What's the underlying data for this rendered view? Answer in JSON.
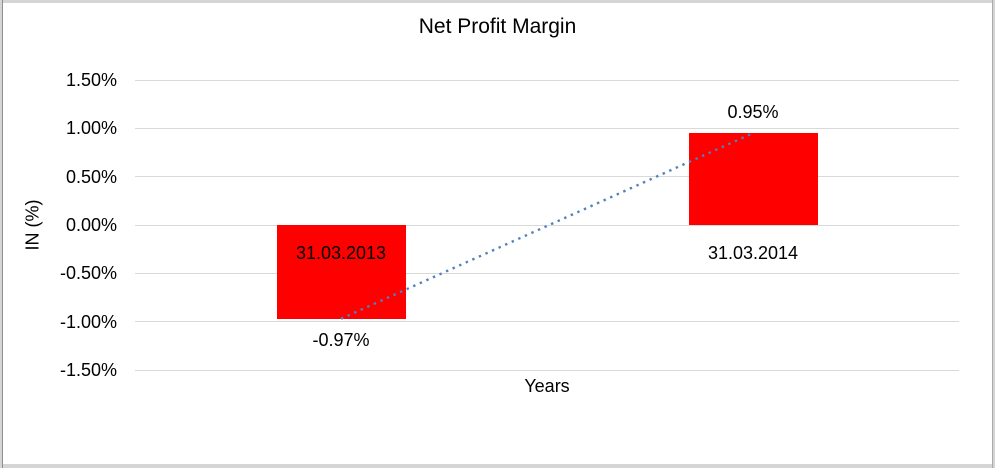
{
  "chart_data": {
    "type": "bar",
    "title": "Net Profit Margin",
    "xlabel": "Years",
    "ylabel": "IN (%)",
    "categories": [
      "31.03.2013",
      "31.03.2014"
    ],
    "values": [
      -0.97,
      0.95
    ],
    "value_labels": [
      "-0.97%",
      "0.95%"
    ],
    "ylim": [
      -1.5,
      1.5
    ],
    "ytick_labels": [
      "1.50%",
      "1.00%",
      "0.50%",
      "0.00%",
      "-0.50%",
      "-1.00%",
      "-1.50%"
    ],
    "grid": true,
    "legend_position": "none",
    "bar_color": "#ff0000",
    "gridline_color": "#d9d9d9",
    "trendline": {
      "type": "linear",
      "style": "dotted",
      "color": "#4f81bd",
      "from": {
        "category_index": 0,
        "value": -0.97
      },
      "to": {
        "category_index": 1,
        "value": 0.95
      }
    }
  }
}
